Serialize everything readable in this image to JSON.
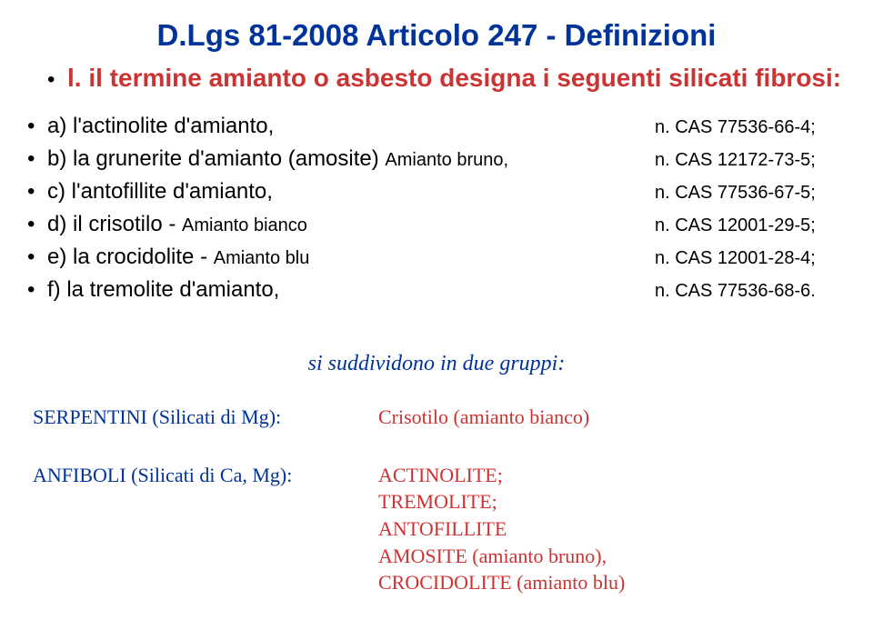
{
  "title": "D.Lgs 81-2008 Articolo 247 - Definizioni",
  "subtitle_bullet": "l.",
  "subtitle": "il termine amianto o asbesto designa i seguenti silicati fibrosi:",
  "list": [
    {
      "label": "a) l'actinolite d'amianto,",
      "small": "",
      "cas": "n. CAS 77536-66-4;"
    },
    {
      "label": "b) la grunerite d'amianto (amosite) ",
      "small": "Amianto bruno,",
      "cas": "n. CAS 12172-73-5;"
    },
    {
      "label": "c) l'antofillite d'amianto,",
      "small": "",
      "cas": "n. CAS 77536-67-5;"
    },
    {
      "label": "d) il crisotilo - ",
      "small": "Amianto bianco",
      "cas": "n. CAS 12001-29-5;"
    },
    {
      "label": "e) la crocidolite - ",
      "small": "Amianto blu",
      "cas": "n. CAS 12001-28-4;"
    },
    {
      "label": "f) la tremolite d'amianto,",
      "small": "",
      "cas": "n. CAS 77536-68-6."
    }
  ],
  "groups_line": "si suddividono in due gruppi:",
  "bottom": {
    "serpentini_label": "SERPENTINI (Silicati di Mg):",
    "serpentini_value": "Crisotilo (amianto bianco)",
    "anfiboli_label": "ANFIBOLI (Silicati di Ca, Mg):",
    "anfiboli_values": [
      "ACTINOLITE;",
      "TREMOLITE;",
      "ANTOFILLITE",
      "AMOSITE (amianto bruno),",
      "CROCIDOLITE (amianto blu)"
    ]
  },
  "colors": {
    "title": "#003399",
    "subtitle": "#cc3333",
    "body": "#000000",
    "groups": "#003399",
    "left_label": "#003399",
    "right_value": "#cc3333",
    "background": "#ffffff"
  }
}
